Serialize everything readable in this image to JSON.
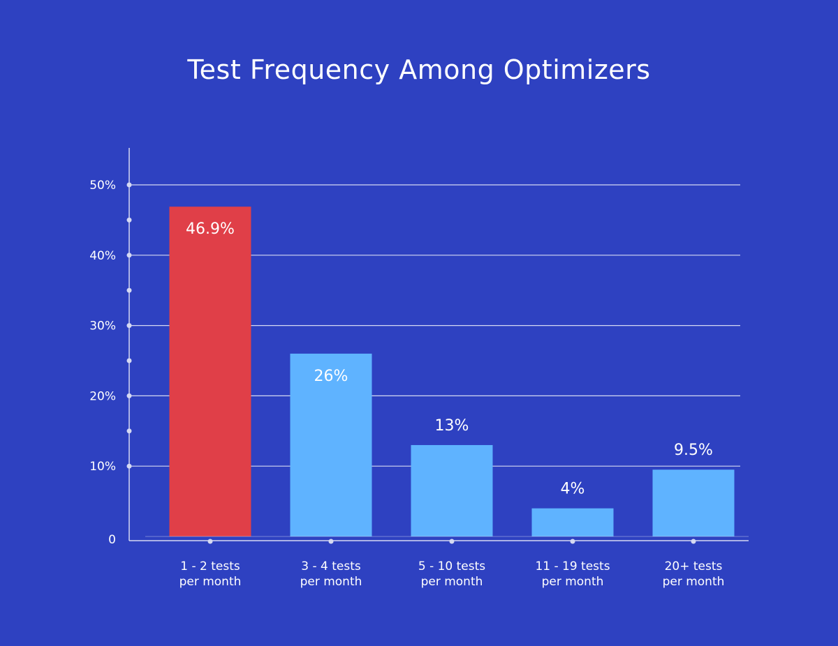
{
  "chart_data": {
    "type": "bar",
    "title": "Test Frequency Among Optimizers",
    "categories": [
      [
        "1 - 2 tests",
        "per month"
      ],
      [
        "3 - 4 tests",
        "per month"
      ],
      [
        "5 - 10 tests",
        "per month"
      ],
      [
        "11 - 19 tests",
        "per month"
      ],
      [
        "20+ tests",
        "per month"
      ]
    ],
    "values": [
      46.9,
      26,
      13,
      4,
      9.5
    ],
    "data_labels": [
      "46.9%",
      "26%",
      "13%",
      "4%",
      "9.5%"
    ],
    "ylim": [
      0,
      50
    ],
    "yticks": [
      0,
      10,
      20,
      30,
      40,
      50
    ],
    "ytick_labels": [
      "0",
      "10%",
      "20%",
      "30%",
      "40%",
      "50%"
    ],
    "xlabel": "",
    "ylabel": "",
    "grid": true,
    "colors": {
      "background": "#2e41c1",
      "highlight_bar": "#e03f48",
      "bar": "#5fb3ff",
      "grid": "#d5d9f2",
      "text": "#ffffff"
    },
    "highlight_index": 0
  }
}
